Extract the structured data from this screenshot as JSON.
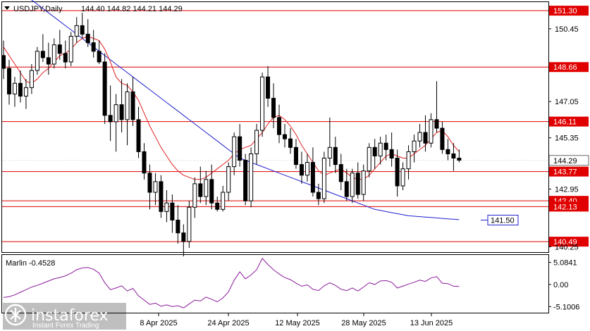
{
  "window": {
    "symbol": "USDJPY,Daily",
    "ohlc": "144.40 144.82 144.21 144.29"
  },
  "chart_data": {
    "type": "candlestick",
    "title": "USDJPY,Daily",
    "ohlc_readout": {
      "open": 144.4,
      "high": 144.82,
      "low": 144.21,
      "close": 144.29
    },
    "y_ticks": [
      "150.45",
      "147.05",
      "145.35",
      "142.95",
      "140.25"
    ],
    "ylim": [
      140.0,
      151.7
    ],
    "x_labels": [
      "8 Apr 2025",
      "24 Apr 2025",
      "12 May 2025",
      "28 May 2025",
      "13 Jun 2025"
    ],
    "current_price": 144.29,
    "current_price_label": "144.29",
    "levels": [
      {
        "value": 151.3,
        "label": "151.30"
      },
      {
        "value": 148.66,
        "label": "148.66"
      },
      {
        "value": 146.11,
        "label": "146.11"
      },
      {
        "value": 143.77,
        "label": "143.77"
      },
      {
        "value": 142.4,
        "label": "142.40"
      },
      {
        "value": 142.13,
        "label": "142.13"
      },
      {
        "value": 140.49,
        "label": "140.49"
      }
    ],
    "ma_annotation": {
      "value": 141.5,
      "label": "141.50"
    },
    "candles": [
      [
        149.2,
        149.9,
        148.1,
        148.6
      ],
      [
        148.6,
        149.0,
        146.9,
        147.4
      ],
      [
        147.4,
        148.2,
        146.8,
        147.9
      ],
      [
        147.9,
        148.5,
        147.0,
        147.3
      ],
      [
        147.3,
        148.1,
        146.7,
        147.7
      ],
      [
        147.7,
        148.8,
        147.4,
        148.5
      ],
      [
        148.5,
        149.6,
        148.3,
        149.4
      ],
      [
        149.4,
        150.2,
        148.9,
        149.1
      ],
      [
        149.1,
        149.8,
        148.3,
        148.8
      ],
      [
        148.8,
        150.0,
        148.6,
        149.7
      ],
      [
        149.7,
        150.4,
        149.0,
        149.3
      ],
      [
        149.3,
        149.9,
        148.6,
        148.9
      ],
      [
        148.9,
        150.3,
        148.7,
        150.1
      ],
      [
        150.1,
        151.0,
        149.8,
        150.6
      ],
      [
        150.6,
        151.2,
        150.0,
        150.2
      ],
      [
        150.2,
        150.9,
        149.6,
        149.8
      ],
      [
        149.8,
        150.4,
        149.1,
        149.4
      ],
      [
        149.4,
        149.9,
        148.8,
        148.9
      ],
      [
        148.9,
        149.3,
        146.0,
        146.4
      ],
      [
        146.4,
        147.8,
        145.2,
        146.1
      ],
      [
        146.1,
        147.4,
        144.7,
        146.9
      ],
      [
        146.9,
        148.1,
        145.6,
        146.2
      ],
      [
        146.2,
        147.9,
        145.0,
        147.5
      ],
      [
        147.5,
        148.2,
        145.9,
        146.2
      ],
      [
        146.2,
        146.8,
        144.4,
        144.7
      ],
      [
        144.7,
        145.1,
        143.4,
        143.7
      ],
      [
        143.7,
        144.1,
        142.0,
        142.8
      ],
      [
        142.8,
        143.7,
        142.2,
        143.3
      ],
      [
        143.3,
        143.6,
        141.6,
        141.9
      ],
      [
        141.9,
        142.9,
        141.4,
        142.3
      ],
      [
        142.3,
        142.7,
        140.9,
        141.5
      ],
      [
        141.5,
        142.2,
        140.4,
        140.9
      ],
      [
        140.9,
        141.3,
        139.8,
        140.5
      ],
      [
        140.5,
        142.4,
        140.2,
        142.1
      ],
      [
        142.1,
        143.5,
        141.6,
        143.2
      ],
      [
        143.2,
        144.0,
        142.3,
        142.6
      ],
      [
        142.6,
        143.8,
        142.2,
        143.4
      ],
      [
        143.4,
        144.1,
        142.0,
        142.3
      ],
      [
        142.3,
        142.6,
        141.9,
        142.0
      ],
      [
        142.0,
        143.1,
        141.9,
        142.8
      ],
      [
        142.8,
        144.2,
        142.4,
        144.0
      ],
      [
        144.0,
        145.6,
        143.6,
        145.4
      ],
      [
        145.4,
        146.0,
        144.0,
        144.3
      ],
      [
        144.3,
        144.6,
        142.2,
        142.4
      ],
      [
        142.4,
        144.9,
        142.1,
        144.6
      ],
      [
        144.6,
        146.0,
        144.1,
        145.7
      ],
      [
        145.7,
        148.4,
        145.4,
        148.2
      ],
      [
        148.2,
        148.7,
        146.8,
        147.2
      ],
      [
        147.2,
        147.9,
        145.8,
        146.3
      ],
      [
        146.3,
        146.9,
        145.1,
        145.5
      ],
      [
        145.5,
        146.0,
        144.9,
        145.3
      ],
      [
        145.3,
        145.8,
        144.6,
        144.9
      ],
      [
        144.9,
        145.3,
        143.9,
        144.1
      ],
      [
        144.1,
        144.7,
        143.2,
        143.6
      ],
      [
        143.6,
        144.6,
        143.3,
        144.2
      ],
      [
        144.2,
        144.9,
        142.6,
        142.8
      ],
      [
        142.8,
        143.2,
        142.2,
        142.5
      ],
      [
        142.5,
        144.7,
        142.3,
        144.4
      ],
      [
        144.4,
        146.3,
        144.0,
        144.9
      ],
      [
        144.9,
        145.4,
        143.7,
        144.1
      ],
      [
        144.1,
        144.6,
        142.9,
        143.3
      ],
      [
        143.3,
        143.9,
        142.4,
        142.6
      ],
      [
        142.6,
        143.9,
        142.3,
        143.7
      ],
      [
        143.7,
        144.2,
        142.5,
        142.7
      ],
      [
        142.7,
        144.1,
        142.4,
        143.8
      ],
      [
        143.8,
        145.1,
        143.5,
        144.9
      ],
      [
        144.9,
        145.3,
        143.9,
        144.5
      ],
      [
        144.5,
        145.4,
        144.1,
        145.1
      ],
      [
        145.1,
        145.5,
        144.3,
        144.8
      ],
      [
        144.8,
        145.6,
        144.0,
        144.4
      ],
      [
        144.4,
        144.8,
        142.6,
        143.1
      ],
      [
        143.1,
        144.2,
        142.9,
        143.9
      ],
      [
        143.9,
        145.0,
        143.4,
        144.7
      ],
      [
        144.7,
        145.5,
        144.2,
        145.2
      ],
      [
        145.2,
        146.0,
        144.9,
        145.6
      ],
      [
        145.6,
        146.4,
        144.7,
        145.1
      ],
      [
        145.1,
        146.5,
        144.9,
        146.2
      ],
      [
        146.2,
        148.0,
        145.6,
        145.8
      ],
      [
        145.8,
        146.1,
        144.6,
        144.8
      ],
      [
        144.8,
        145.3,
        144.3,
        144.6
      ],
      [
        144.6,
        145.1,
        143.8,
        144.4
      ],
      [
        144.4,
        144.8,
        144.2,
        144.3
      ]
    ],
    "ma_fast": [
      149.6,
      149.2,
      148.8,
      148.4,
      148.0,
      147.9,
      148.1,
      148.4,
      148.6,
      148.9,
      149.2,
      149.3,
      149.5,
      149.8,
      150.0,
      150.1,
      150.0,
      149.9,
      149.5,
      148.9,
      148.2,
      147.9,
      147.8,
      147.5,
      147.1,
      146.5,
      145.9,
      145.4,
      144.9,
      144.5,
      144.1,
      143.8,
      143.6,
      143.5,
      143.4,
      143.4,
      143.5,
      143.7,
      143.9,
      144.1,
      144.3,
      144.6,
      144.8,
      144.9,
      145.0,
      145.3,
      145.6,
      146.0,
      146.3,
      146.4,
      146.2,
      145.9,
      145.5,
      145.0,
      144.6,
      144.2,
      143.8,
      143.6,
      143.7,
      143.8,
      143.9,
      143.7,
      143.5,
      143.4,
      143.4,
      143.6,
      143.9,
      144.2,
      144.5,
      144.6,
      144.5,
      144.4,
      144.4,
      144.6,
      144.8,
      145.0,
      145.3,
      145.6,
      145.7,
      145.4,
      145.0,
      144.7
    ],
    "ma_slow": [
      152.8,
      152.6,
      152.4,
      152.2,
      152.0,
      151.8,
      151.6,
      151.4,
      151.2,
      151.0,
      150.8,
      150.6,
      150.4,
      150.2,
      150.0,
      149.8,
      149.6,
      149.4,
      149.2,
      149.0,
      148.8,
      148.6,
      148.4,
      148.2,
      148.0,
      147.8,
      147.6,
      147.4,
      147.2,
      147.0,
      146.8,
      146.6,
      146.4,
      146.2,
      146.0,
      145.8,
      145.6,
      145.4,
      145.2,
      145.0,
      144.8,
      144.6,
      144.4,
      144.3,
      144.2,
      144.1,
      144.0,
      143.9,
      143.8,
      143.7,
      143.6,
      143.5,
      143.4,
      143.3,
      143.2,
      143.1,
      143.0,
      142.9,
      142.8,
      142.7,
      142.6,
      142.5,
      142.4,
      142.3,
      142.2,
      142.1,
      142.0,
      141.95,
      141.9,
      141.85,
      141.8,
      141.75,
      141.7,
      141.68,
      141.66,
      141.64,
      141.62,
      141.6,
      141.58,
      141.56,
      141.54,
      141.52
    ],
    "indicator": {
      "name": "Marlin",
      "header": "Marlin -0.4528",
      "value": -0.4528,
      "y_ticks": [
        "5.0841",
        "0.00",
        "-5.1006"
      ],
      "ylim": [
        -6.5,
        6.8
      ],
      "values": [
        -3.0,
        -2.8,
        -2.4,
        -1.8,
        -1.2,
        -0.6,
        -0.2,
        0.3,
        0.8,
        1.3,
        1.6,
        2.0,
        2.6,
        3.4,
        3.8,
        3.9,
        3.5,
        2.6,
        0.4,
        -1.2,
        -0.8,
        -0.3,
        -1.5,
        -0.9,
        -2.6,
        -3.6,
        -4.6,
        -4.3,
        -5.0,
        -4.7,
        -5.1,
        -4.9,
        -5.4,
        -4.5,
        -3.6,
        -3.8,
        -2.9,
        -3.4,
        -4.0,
        -3.1,
        -1.7,
        1.0,
        2.9,
        1.3,
        2.2,
        3.4,
        6.0,
        4.6,
        3.4,
        2.4,
        1.6,
        1.1,
        0.3,
        -0.4,
        -0.1,
        -1.1,
        -1.4,
        -0.3,
        0.4,
        -0.2,
        -1.1,
        -1.4,
        -0.8,
        -1.5,
        -0.6,
        0.4,
        0.0,
        0.8,
        0.9,
        0.5,
        -0.8,
        -0.4,
        0.1,
        0.5,
        1.0,
        0.7,
        1.5,
        1.8,
        0.3,
        0.2,
        -0.4,
        -0.45
      ]
    },
    "colors": {
      "bull": "#000000",
      "bear": "#000000",
      "ma_fast": "#e02020",
      "ma_slow": "#1f1fd0",
      "indicator": "#8a1a9a",
      "level": "#e00000",
      "level_label_bg": "#e00000",
      "price_label_bg": "#ffffff",
      "ma_label": "#1f1fd0"
    }
  },
  "watermark": {
    "brand": "instaforex",
    "tagline": "Instant Forex Trading"
  }
}
